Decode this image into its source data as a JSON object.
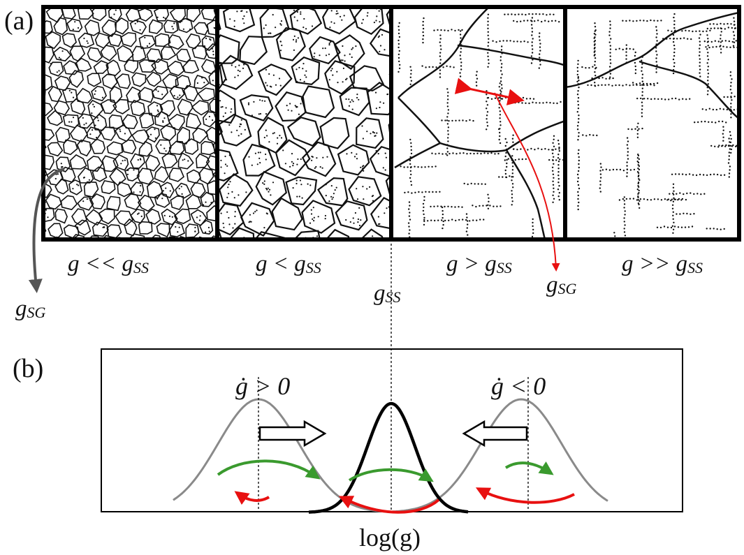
{
  "panel_a": {
    "tag": "(a)",
    "regimes": [
      {
        "text": "g << g",
        "sub": "SS"
      },
      {
        "text": "g < g",
        "sub": "SS"
      },
      {
        "text": "g > g",
        "sub": "SS"
      },
      {
        "text": "g >> g",
        "sub": "SS"
      }
    ],
    "gss_label": {
      "base": "g",
      "sub": "SS"
    },
    "gsg_left": {
      "base": "g",
      "sub": "SG"
    },
    "gsg_right": {
      "base": "g",
      "sub": "SG"
    }
  },
  "panel_b": {
    "tag": "(b)",
    "left_rate": "ġ > 0",
    "right_rate": "ġ < 0",
    "xaxis_label": "log(g)"
  },
  "colors": {
    "frame": "#000000",
    "boundary": "#111111",
    "green": "#3a9a2e",
    "red": "#e81010",
    "gray": "#8a8a8a",
    "gray_arrow": "#555555"
  }
}
